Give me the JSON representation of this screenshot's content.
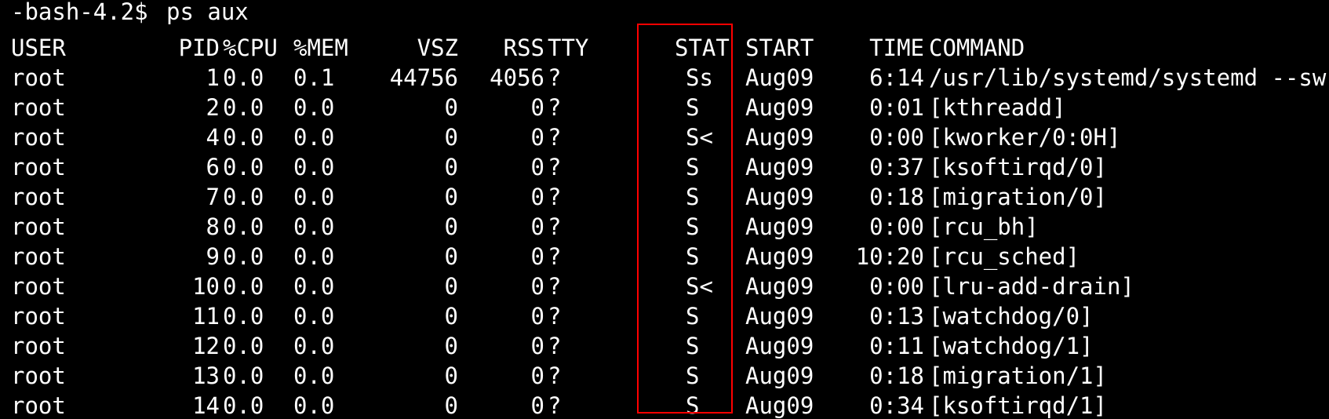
{
  "terminal": {
    "prompt": "-bash-4.2$",
    "command": "ps aux",
    "highlight_color": "#ff0000",
    "background_color": "#000000",
    "text_color": "#ffffff"
  },
  "headers": {
    "user": "USER",
    "pid": "PID",
    "cpu": "%CPU",
    "mem": "%MEM",
    "vsz": "VSZ",
    "rss": "RSS",
    "tty": "TTY",
    "stat": "STAT",
    "start": "START",
    "time": "TIME",
    "command": "COMMAND"
  },
  "rows": [
    {
      "user": "root",
      "pid": "1",
      "cpu": "0.0",
      "mem": "0.1",
      "vsz": "44756",
      "rss": "4056",
      "tty": "?",
      "stat": "Ss",
      "start": "Aug09",
      "time": "6:14",
      "command": "/usr/lib/systemd/systemd --sw"
    },
    {
      "user": "root",
      "pid": "2",
      "cpu": "0.0",
      "mem": "0.0",
      "vsz": "0",
      "rss": "0",
      "tty": "?",
      "stat": "S",
      "start": "Aug09",
      "time": "0:01",
      "command": "[kthreadd]"
    },
    {
      "user": "root",
      "pid": "4",
      "cpu": "0.0",
      "mem": "0.0",
      "vsz": "0",
      "rss": "0",
      "tty": "?",
      "stat": "S<",
      "start": "Aug09",
      "time": "0:00",
      "command": "[kworker/0:0H]"
    },
    {
      "user": "root",
      "pid": "6",
      "cpu": "0.0",
      "mem": "0.0",
      "vsz": "0",
      "rss": "0",
      "tty": "?",
      "stat": "S",
      "start": "Aug09",
      "time": "0:37",
      "command": "[ksoftirqd/0]"
    },
    {
      "user": "root",
      "pid": "7",
      "cpu": "0.0",
      "mem": "0.0",
      "vsz": "0",
      "rss": "0",
      "tty": "?",
      "stat": "S",
      "start": "Aug09",
      "time": "0:18",
      "command": "[migration/0]"
    },
    {
      "user": "root",
      "pid": "8",
      "cpu": "0.0",
      "mem": "0.0",
      "vsz": "0",
      "rss": "0",
      "tty": "?",
      "stat": "S",
      "start": "Aug09",
      "time": "0:00",
      "command": "[rcu_bh]"
    },
    {
      "user": "root",
      "pid": "9",
      "cpu": "0.0",
      "mem": "0.0",
      "vsz": "0",
      "rss": "0",
      "tty": "?",
      "stat": "S",
      "start": "Aug09",
      "time": "10:20",
      "command": "[rcu_sched]"
    },
    {
      "user": "root",
      "pid": "10",
      "cpu": "0.0",
      "mem": "0.0",
      "vsz": "0",
      "rss": "0",
      "tty": "?",
      "stat": "S<",
      "start": "Aug09",
      "time": "0:00",
      "command": "[lru-add-drain]"
    },
    {
      "user": "root",
      "pid": "11",
      "cpu": "0.0",
      "mem": "0.0",
      "vsz": "0",
      "rss": "0",
      "tty": "?",
      "stat": "S",
      "start": "Aug09",
      "time": "0:13",
      "command": "[watchdog/0]"
    },
    {
      "user": "root",
      "pid": "12",
      "cpu": "0.0",
      "mem": "0.0",
      "vsz": "0",
      "rss": "0",
      "tty": "?",
      "stat": "S",
      "start": "Aug09",
      "time": "0:11",
      "command": "[watchdog/1]"
    },
    {
      "user": "root",
      "pid": "13",
      "cpu": "0.0",
      "mem": "0.0",
      "vsz": "0",
      "rss": "0",
      "tty": "?",
      "stat": "S",
      "start": "Aug09",
      "time": "0:18",
      "command": "[migration/1]"
    },
    {
      "user": "root",
      "pid": "14",
      "cpu": "0.0",
      "mem": "0.0",
      "vsz": "0",
      "rss": "0",
      "tty": "?",
      "stat": "S",
      "start": "Aug09",
      "time": "0:34",
      "command": "[ksoftirqd/1]"
    }
  ]
}
